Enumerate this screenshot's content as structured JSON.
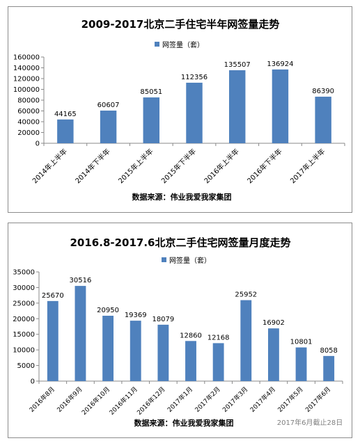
{
  "chart_data": [
    {
      "type": "bar",
      "title": "2009-2017北京二手住宅半年网签量走势",
      "legend": "网签量（套）",
      "legend_position": "top",
      "categories": [
        "2014年上半年",
        "2014年下半年",
        "2015年上半年",
        "2015年下半年",
        "2016年上半年",
        "2016年下半年",
        "2017年上半年"
      ],
      "series": [
        {
          "name": "网签量（套）",
          "values": [
            44165,
            60607,
            85051,
            112356,
            135507,
            136924,
            86390
          ]
        }
      ],
      "data_labels": [
        "44165",
        "60607",
        "85051",
        "112356",
        "135507",
        "136924",
        "86390"
      ],
      "yticks": [
        "0",
        "20000",
        "40000",
        "60000",
        "80000",
        "100000",
        "120000",
        "140000",
        "160000"
      ],
      "ylim": [
        0,
        160000
      ],
      "grid": false,
      "bar_color": "#4f81bd",
      "source": "数据来源：伟业我爱我家集团"
    },
    {
      "type": "bar",
      "title": "2016.8-2017.6北京二手住宅网签量月度走势",
      "legend": "网签量（套）",
      "legend_position": "top",
      "categories": [
        "2016年8月",
        "2016年9月",
        "2016年10月",
        "2016年11月",
        "2016年12月",
        "2017年1月",
        "2017年2月",
        "2017年3月",
        "2017年4月",
        "2017年5月",
        "2017年6月"
      ],
      "series": [
        {
          "name": "网签量（套）",
          "values": [
            25670,
            30516,
            20950,
            19369,
            18079,
            12860,
            12168,
            25952,
            16902,
            10801,
            8058
          ]
        }
      ],
      "data_labels": [
        "25670",
        "30516",
        "20950",
        "19369",
        "18079",
        "12860",
        "12168",
        "25952",
        "16902",
        "10801",
        "8058"
      ],
      "yticks": [
        "0",
        "5000",
        "10000",
        "15000",
        "20000",
        "25000",
        "30000",
        "35000"
      ],
      "ylim": [
        0,
        35000
      ],
      "grid": false,
      "bar_color": "#4f81bd",
      "source": "数据来源：伟业我爱我家集团",
      "note": "2017年6月截止28日"
    }
  ]
}
